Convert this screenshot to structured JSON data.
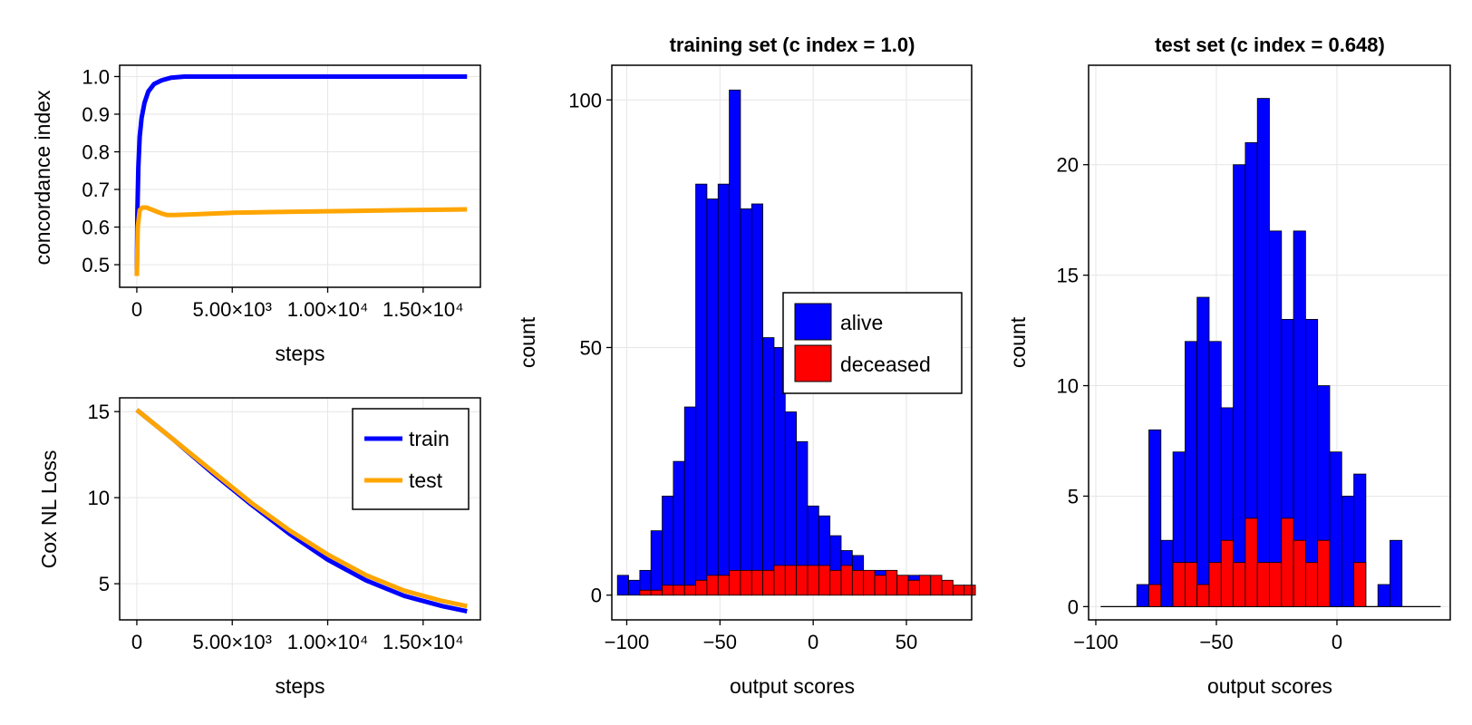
{
  "colors": {
    "train": "#0000ff",
    "test": "#ffa500",
    "alive": "#0000ff",
    "deceased": "#ff0000",
    "grid": "#e6e6e6"
  },
  "chart_data": [
    {
      "id": "cindex",
      "type": "line",
      "title": "",
      "xlabel": "steps",
      "ylabel": "concordance index",
      "xlim": [
        -900,
        18000
      ],
      "ylim": [
        0.44,
        1.03
      ],
      "xticks": [
        0,
        5000,
        10000,
        15000
      ],
      "xtick_labels": [
        "0",
        "5.00×10³",
        "1.00×10⁴",
        "1.50×10⁴"
      ],
      "yticks": [
        0.5,
        0.6,
        0.7,
        0.8,
        0.9,
        1.0
      ],
      "ytick_labels": [
        "0.5",
        "0.6",
        "0.7",
        "0.8",
        "0.9",
        "1.0"
      ],
      "grid": true,
      "series": [
        {
          "key": "train",
          "x": [
            0,
            30,
            80,
            150,
            250,
            400,
            600,
            900,
            1300,
            1800,
            2500,
            3500,
            5000,
            8000,
            12000,
            17300
          ],
          "y": [
            0.47,
            0.64,
            0.76,
            0.84,
            0.89,
            0.93,
            0.96,
            0.98,
            0.99,
            0.997,
            1.0,
            1.0,
            1.0,
            1.0,
            1.0,
            1.0
          ]
        },
        {
          "key": "test",
          "x": [
            0,
            50,
            150,
            300,
            500,
            700,
            1000,
            1300,
            1600,
            2000,
            3000,
            4000,
            5000,
            7000,
            10000,
            14000,
            17300
          ],
          "y": [
            0.47,
            0.6,
            0.645,
            0.652,
            0.652,
            0.648,
            0.642,
            0.636,
            0.632,
            0.632,
            0.634,
            0.636,
            0.638,
            0.64,
            0.642,
            0.645,
            0.647
          ]
        }
      ]
    },
    {
      "id": "loss",
      "type": "line",
      "title": "",
      "xlabel": "steps",
      "ylabel": "Cox NL Loss",
      "xlim": [
        -900,
        18000
      ],
      "ylim": [
        2.9,
        15.8
      ],
      "xticks": [
        0,
        5000,
        10000,
        15000
      ],
      "xtick_labels": [
        "0",
        "5.00×10³",
        "1.00×10⁴",
        "1.50×10⁴"
      ],
      "yticks": [
        5,
        10,
        15
      ],
      "ytick_labels": [
        "5",
        "10",
        "15"
      ],
      "grid": true,
      "legend": {
        "position": "top-right",
        "entries": [
          "train",
          "test"
        ]
      },
      "series": [
        {
          "name": "train",
          "x": [
            0,
            2000,
            4000,
            6000,
            8000,
            10000,
            12000,
            14000,
            16000,
            17300
          ],
          "y": [
            15.1,
            13.3,
            11.4,
            9.6,
            7.9,
            6.4,
            5.2,
            4.3,
            3.7,
            3.4
          ]
        },
        {
          "name": "test",
          "x": [
            0,
            2000,
            4000,
            6000,
            8000,
            10000,
            12000,
            14000,
            16000,
            17300
          ],
          "y": [
            15.1,
            13.3,
            11.5,
            9.7,
            8.1,
            6.7,
            5.5,
            4.6,
            4.0,
            3.7
          ]
        }
      ]
    },
    {
      "id": "train_hist",
      "type": "bar",
      "title": "training set (c index = 1.0)",
      "xlabel": "output scores",
      "ylabel": "count",
      "xlim": [
        -108,
        85
      ],
      "ylim": [
        -5,
        107
      ],
      "xticks": [
        -100,
        -50,
        0,
        50
      ],
      "xtick_labels": [
        "−100",
        "−50",
        "0",
        "50"
      ],
      "yticks": [
        0,
        50,
        100
      ],
      "ytick_labels": [
        "0",
        "50",
        "100"
      ],
      "grid": true,
      "legend": {
        "position": "right",
        "entries": [
          "alive",
          "deceased"
        ]
      },
      "bin_start": -105,
      "bin_width": 6,
      "series": [
        {
          "name": "alive",
          "values": [
            4,
            3,
            5,
            13,
            20,
            27,
            38,
            83,
            80,
            83,
            102,
            78,
            79,
            52,
            50,
            37,
            31,
            18,
            16,
            12,
            9,
            8,
            5,
            5,
            5,
            4,
            4,
            4,
            2,
            2,
            2,
            2
          ]
        },
        {
          "name": "deceased",
          "values": [
            0,
            0,
            1,
            1,
            2,
            2,
            2,
            3,
            4,
            4,
            5,
            5,
            5,
            5,
            6,
            6,
            6,
            6,
            6,
            5,
            6,
            5,
            5,
            4,
            5,
            4,
            3,
            4,
            4,
            3,
            2,
            2
          ]
        }
      ]
    },
    {
      "id": "test_hist",
      "type": "bar",
      "title": "test set (c index = 0.648)",
      "xlabel": "output scores",
      "ylabel": "count",
      "xlim": [
        -103,
        47
      ],
      "ylim": [
        -0.6,
        24.5
      ],
      "xticks": [
        -100,
        -50,
        0
      ],
      "xtick_labels": [
        "−100",
        "−50",
        "0"
      ],
      "yticks": [
        0,
        5,
        10,
        15,
        20
      ],
      "ytick_labels": [
        "0",
        "5",
        "10",
        "15",
        "20"
      ],
      "grid": true,
      "baseline": [
        -98,
        43
      ],
      "bin_start": -83,
      "bin_width": 5,
      "series": [
        {
          "name": "alive",
          "values": [
            1,
            8,
            3,
            7,
            12,
            14,
            12,
            9,
            20,
            21,
            23,
            17,
            13,
            17,
            13,
            10,
            7,
            5,
            6,
            0,
            1,
            3
          ]
        },
        {
          "name": "deceased",
          "values": [
            0,
            1,
            0,
            2,
            2,
            1,
            2,
            3,
            2,
            4,
            2,
            2,
            4,
            3,
            2,
            3,
            0,
            0,
            2,
            0,
            0,
            0
          ]
        }
      ]
    }
  ]
}
